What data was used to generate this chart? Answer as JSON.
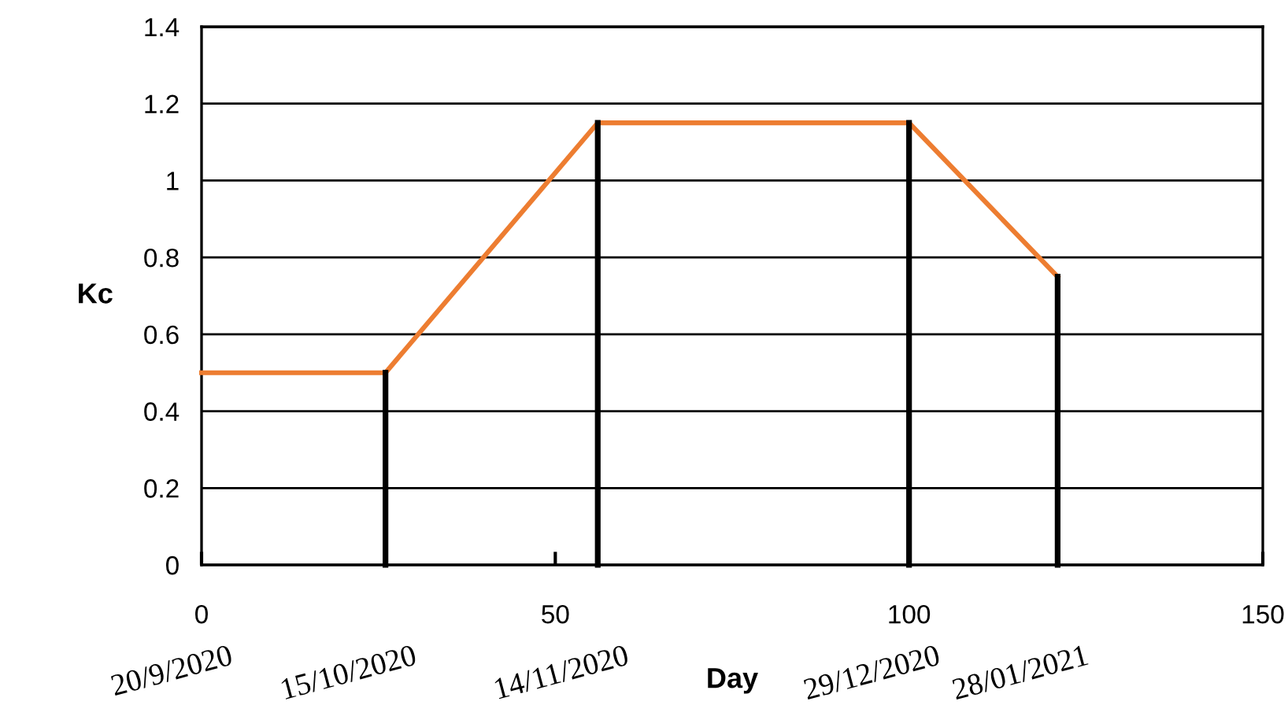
{
  "chart_data": {
    "type": "line",
    "xlabel": "Day",
    "ylabel": "Kc",
    "series": [
      {
        "color": "#ed7d31",
        "x": [
          0,
          26,
          56,
          100,
          121
        ],
        "values": [
          0.5,
          0.5,
          1.15,
          1.15,
          0.75
        ]
      },
      {
        "color": "#000000",
        "x": [
          26,
          26
        ],
        "values": [
          0,
          0.5
        ]
      },
      {
        "color": "#000000",
        "x": [
          56,
          56
        ],
        "values": [
          0,
          1.15
        ]
      },
      {
        "color": "#000000",
        "x": [
          100,
          100
        ],
        "values": [
          0,
          1.15
        ]
      },
      {
        "color": "#000000",
        "x": [
          121,
          121
        ],
        "values": [
          0,
          0.75
        ]
      }
    ],
    "annotations": [
      "20/9/2020",
      "15/10/2020",
      "14/11/2020",
      "29/12/2020",
      "28/01/2021"
    ],
    "xlim": [
      0,
      150
    ],
    "xticks": [
      0,
      50,
      100,
      150
    ],
    "ylim": [
      0,
      1.4
    ],
    "yticks": [
      0,
      0.2,
      0.4,
      0.6,
      0.8,
      1,
      1.2,
      1.4
    ],
    "grid": "y",
    "legend": false,
    "marker": "none",
    "line_style": "solid"
  }
}
